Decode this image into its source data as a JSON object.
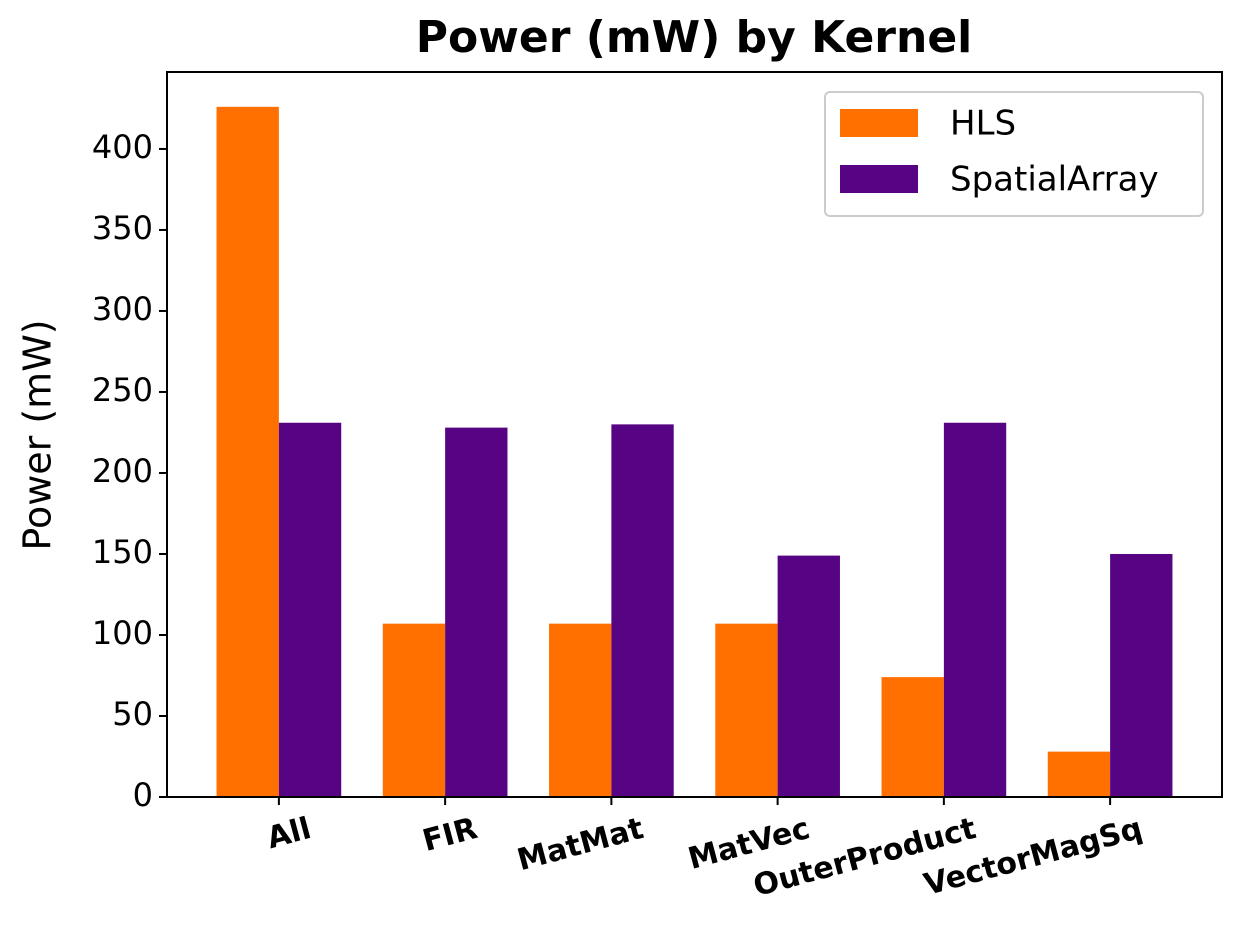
{
  "chart_data": {
    "type": "bar",
    "title": "Power (mW) by Kernel",
    "y_label": "Power (mW)",
    "categories": [
      "All",
      "FIR",
      "MatMat",
      "MatVec",
      "OuterProduct",
      "VectorMagSq"
    ],
    "series": [
      {
        "name": "HLS",
        "color": "#ff7000",
        "values": [
          426,
          107,
          107,
          107,
          74,
          28
        ]
      },
      {
        "name": "SpatialArray",
        "color": "#560483",
        "values": [
          231,
          228,
          230,
          149,
          231,
          150
        ]
      }
    ],
    "ylim": [
      0,
      447.5
    ],
    "yticks": [
      0,
      50,
      100,
      150,
      200,
      250,
      300,
      350,
      400
    ],
    "legend": "upper right",
    "grid": false
  }
}
